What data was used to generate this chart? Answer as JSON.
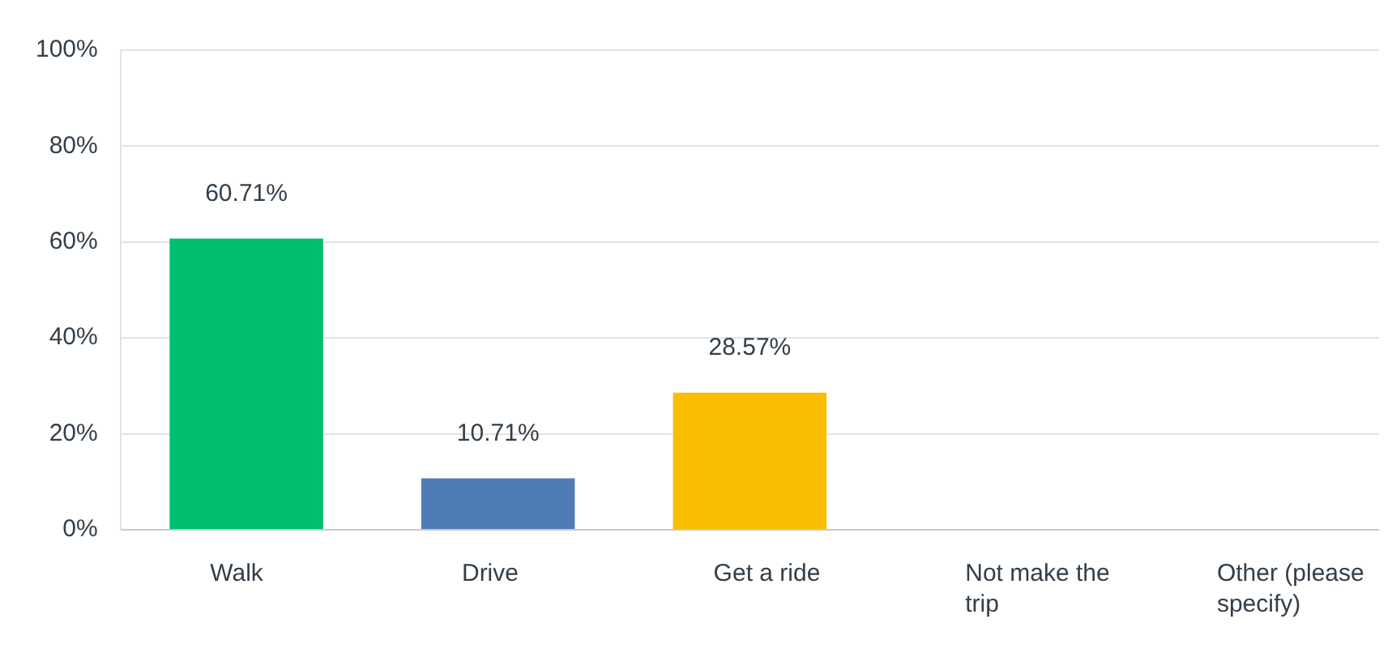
{
  "chart_data": {
    "type": "bar",
    "categories": [
      "Walk",
      "Drive",
      "Get a ride",
      "Not make the trip",
      "Other (please specify)"
    ],
    "values": [
      60.71,
      10.71,
      28.57,
      0,
      0
    ],
    "colors": [
      "#00bf6f",
      "#507cb6",
      "#f9be00",
      "#f9be00",
      "#f9be00"
    ],
    "value_labels": [
      "60.71%",
      "10.71%",
      "28.57%",
      null,
      null
    ],
    "ylim": [
      0,
      100
    ],
    "yticks": [
      {
        "value": 0,
        "label": "0%"
      },
      {
        "value": 20,
        "label": "20%"
      },
      {
        "value": 40,
        "label": "40%"
      },
      {
        "value": 60,
        "label": "60%"
      },
      {
        "value": 80,
        "label": "80%"
      },
      {
        "value": 100,
        "label": "100%"
      }
    ],
    "grid": "y",
    "legend": false
  }
}
